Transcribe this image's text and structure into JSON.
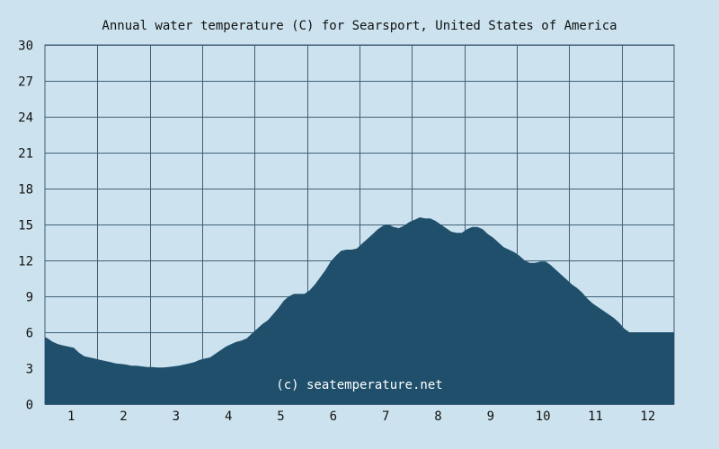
{
  "chart_data": {
    "type": "area",
    "title": "Annual water temperature (C) for Searsport, United States of America",
    "xlabel": "",
    "ylabel": "",
    "x_ticks": [
      "1",
      "2",
      "3",
      "4",
      "5",
      "6",
      "7",
      "8",
      "9",
      "10",
      "11",
      "12"
    ],
    "y_ticks": [
      "0",
      "3",
      "6",
      "9",
      "12",
      "15",
      "18",
      "21",
      "24",
      "27",
      "30"
    ],
    "xlim": [
      0.5,
      12.5
    ],
    "ylim": [
      0,
      30
    ],
    "grid": true,
    "watermark": "(c) seatemperature.net",
    "colors": {
      "background": "#cce3ef",
      "area": "#1f4f6b",
      "grid": "#3f5f75"
    },
    "series": [
      {
        "x": [
          0.5,
          0.55,
          0.65,
          0.75,
          0.85,
          0.95,
          1.05,
          1.15,
          1.25,
          1.35,
          1.45,
          1.55,
          1.65,
          1.75,
          1.85,
          1.95,
          2.05,
          2.15,
          2.25,
          2.35,
          2.45,
          2.55,
          2.65,
          2.75,
          2.85,
          2.95,
          3.05,
          3.15,
          3.25,
          3.35,
          3.45,
          3.55,
          3.65,
          3.75,
          3.85,
          3.95,
          4.05,
          4.15,
          4.25,
          4.35,
          4.45,
          4.55,
          4.65,
          4.75,
          4.85,
          4.95,
          5.05,
          5.15,
          5.25,
          5.35,
          5.45,
          5.55,
          5.65,
          5.75,
          5.85,
          5.95,
          6.05,
          6.15,
          6.25,
          6.35,
          6.45,
          6.55,
          6.65,
          6.75,
          6.85,
          6.95,
          7.05,
          7.15,
          7.25,
          7.35,
          7.45,
          7.55,
          7.65,
          7.75,
          7.85,
          7.95,
          8.05,
          8.15,
          8.25,
          8.35,
          8.45,
          8.55,
          8.65,
          8.75,
          8.85,
          8.95,
          9.05,
          9.15,
          9.25,
          9.35,
          9.45,
          9.55,
          9.65,
          9.75,
          9.85,
          9.95,
          10.05,
          10.15,
          10.25,
          10.35,
          10.45,
          10.55,
          10.65,
          10.75,
          10.85,
          10.95,
          11.05,
          11.15,
          11.25,
          11.35,
          11.45,
          11.55,
          11.65,
          11.75,
          11.85,
          11.95,
          12.05,
          12.15,
          12.25,
          12.35,
          12.45,
          12.5
        ],
        "y": [
          5.6,
          5.5,
          5.2,
          5.0,
          4.9,
          4.8,
          4.7,
          4.3,
          4.0,
          3.9,
          3.8,
          3.7,
          3.6,
          3.5,
          3.4,
          3.35,
          3.3,
          3.2,
          3.2,
          3.15,
          3.1,
          3.1,
          3.05,
          3.05,
          3.1,
          3.15,
          3.2,
          3.3,
          3.4,
          3.5,
          3.7,
          3.8,
          3.9,
          4.2,
          4.5,
          4.8,
          5.0,
          5.2,
          5.3,
          5.5,
          5.9,
          6.3,
          6.7,
          7.0,
          7.5,
          8.0,
          8.6,
          9.0,
          9.2,
          9.2,
          9.2,
          9.5,
          10.0,
          10.6,
          11.2,
          11.9,
          12.4,
          12.8,
          12.9,
          12.9,
          13.0,
          13.4,
          13.8,
          14.2,
          14.6,
          14.9,
          15.0,
          14.8,
          14.7,
          14.9,
          15.2,
          15.4,
          15.6,
          15.5,
          15.5,
          15.3,
          15.0,
          14.7,
          14.4,
          14.3,
          14.3,
          14.6,
          14.8,
          14.8,
          14.6,
          14.2,
          13.9,
          13.5,
          13.1,
          12.9,
          12.7,
          12.4,
          12.0,
          11.8,
          11.8,
          11.9,
          11.9,
          11.6,
          11.2,
          10.8,
          10.4,
          10.0,
          9.7,
          9.3,
          8.8,
          8.4,
          8.1,
          7.8,
          7.5,
          7.2,
          6.8,
          6.3,
          6.0,
          6.0,
          6.0,
          6.0,
          6.0,
          6.0,
          6.0,
          6.0,
          6.0,
          6.0
        ]
      }
    ]
  }
}
